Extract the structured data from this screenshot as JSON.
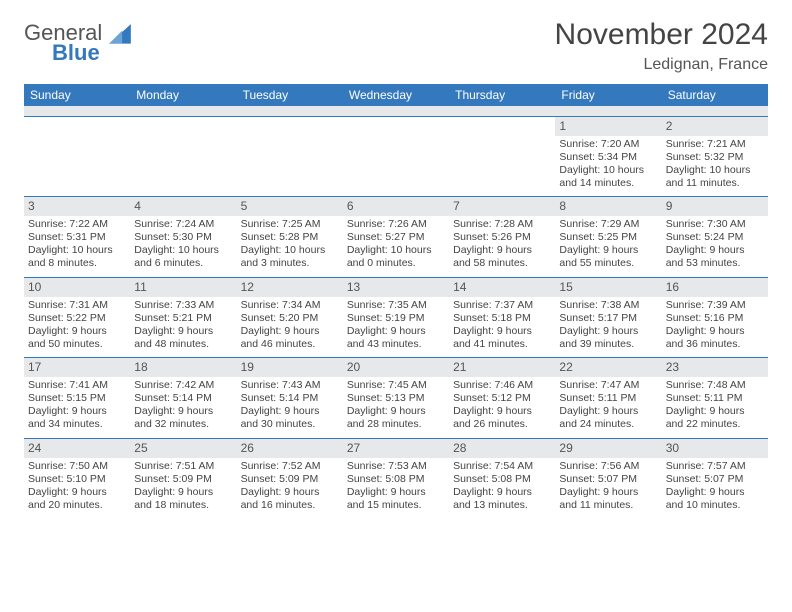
{
  "brand": {
    "general": "General",
    "blue": "Blue"
  },
  "title": {
    "month": "November 2024",
    "location": "Ledignan, France"
  },
  "colors": {
    "header_bg": "#3478bd",
    "header_text": "#ffffff",
    "daynum_bg": "#e7e8ea",
    "border": "#3478bd",
    "body_text": "#444444",
    "page_bg": "#ffffff"
  },
  "typography": {
    "title_fontsize": 30,
    "location_fontsize": 16,
    "weekday_fontsize": 12,
    "cell_fontsize": 10.5
  },
  "layout": {
    "columns": 7,
    "rows": 5,
    "week_start": "Sunday"
  },
  "weekdays": [
    "Sunday",
    "Monday",
    "Tuesday",
    "Wednesday",
    "Thursday",
    "Friday",
    "Saturday"
  ],
  "weeks": [
    [
      null,
      null,
      null,
      null,
      null,
      {
        "n": "1",
        "sunrise": "Sunrise: 7:20 AM",
        "sunset": "Sunset: 5:34 PM",
        "daylight1": "Daylight: 10 hours",
        "daylight2": "and 14 minutes."
      },
      {
        "n": "2",
        "sunrise": "Sunrise: 7:21 AM",
        "sunset": "Sunset: 5:32 PM",
        "daylight1": "Daylight: 10 hours",
        "daylight2": "and 11 minutes."
      }
    ],
    [
      {
        "n": "3",
        "sunrise": "Sunrise: 7:22 AM",
        "sunset": "Sunset: 5:31 PM",
        "daylight1": "Daylight: 10 hours",
        "daylight2": "and 8 minutes."
      },
      {
        "n": "4",
        "sunrise": "Sunrise: 7:24 AM",
        "sunset": "Sunset: 5:30 PM",
        "daylight1": "Daylight: 10 hours",
        "daylight2": "and 6 minutes."
      },
      {
        "n": "5",
        "sunrise": "Sunrise: 7:25 AM",
        "sunset": "Sunset: 5:28 PM",
        "daylight1": "Daylight: 10 hours",
        "daylight2": "and 3 minutes."
      },
      {
        "n": "6",
        "sunrise": "Sunrise: 7:26 AM",
        "sunset": "Sunset: 5:27 PM",
        "daylight1": "Daylight: 10 hours",
        "daylight2": "and 0 minutes."
      },
      {
        "n": "7",
        "sunrise": "Sunrise: 7:28 AM",
        "sunset": "Sunset: 5:26 PM",
        "daylight1": "Daylight: 9 hours",
        "daylight2": "and 58 minutes."
      },
      {
        "n": "8",
        "sunrise": "Sunrise: 7:29 AM",
        "sunset": "Sunset: 5:25 PM",
        "daylight1": "Daylight: 9 hours",
        "daylight2": "and 55 minutes."
      },
      {
        "n": "9",
        "sunrise": "Sunrise: 7:30 AM",
        "sunset": "Sunset: 5:24 PM",
        "daylight1": "Daylight: 9 hours",
        "daylight2": "and 53 minutes."
      }
    ],
    [
      {
        "n": "10",
        "sunrise": "Sunrise: 7:31 AM",
        "sunset": "Sunset: 5:22 PM",
        "daylight1": "Daylight: 9 hours",
        "daylight2": "and 50 minutes."
      },
      {
        "n": "11",
        "sunrise": "Sunrise: 7:33 AM",
        "sunset": "Sunset: 5:21 PM",
        "daylight1": "Daylight: 9 hours",
        "daylight2": "and 48 minutes."
      },
      {
        "n": "12",
        "sunrise": "Sunrise: 7:34 AM",
        "sunset": "Sunset: 5:20 PM",
        "daylight1": "Daylight: 9 hours",
        "daylight2": "and 46 minutes."
      },
      {
        "n": "13",
        "sunrise": "Sunrise: 7:35 AM",
        "sunset": "Sunset: 5:19 PM",
        "daylight1": "Daylight: 9 hours",
        "daylight2": "and 43 minutes."
      },
      {
        "n": "14",
        "sunrise": "Sunrise: 7:37 AM",
        "sunset": "Sunset: 5:18 PM",
        "daylight1": "Daylight: 9 hours",
        "daylight2": "and 41 minutes."
      },
      {
        "n": "15",
        "sunrise": "Sunrise: 7:38 AM",
        "sunset": "Sunset: 5:17 PM",
        "daylight1": "Daylight: 9 hours",
        "daylight2": "and 39 minutes."
      },
      {
        "n": "16",
        "sunrise": "Sunrise: 7:39 AM",
        "sunset": "Sunset: 5:16 PM",
        "daylight1": "Daylight: 9 hours",
        "daylight2": "and 36 minutes."
      }
    ],
    [
      {
        "n": "17",
        "sunrise": "Sunrise: 7:41 AM",
        "sunset": "Sunset: 5:15 PM",
        "daylight1": "Daylight: 9 hours",
        "daylight2": "and 34 minutes."
      },
      {
        "n": "18",
        "sunrise": "Sunrise: 7:42 AM",
        "sunset": "Sunset: 5:14 PM",
        "daylight1": "Daylight: 9 hours",
        "daylight2": "and 32 minutes."
      },
      {
        "n": "19",
        "sunrise": "Sunrise: 7:43 AM",
        "sunset": "Sunset: 5:14 PM",
        "daylight1": "Daylight: 9 hours",
        "daylight2": "and 30 minutes."
      },
      {
        "n": "20",
        "sunrise": "Sunrise: 7:45 AM",
        "sunset": "Sunset: 5:13 PM",
        "daylight1": "Daylight: 9 hours",
        "daylight2": "and 28 minutes."
      },
      {
        "n": "21",
        "sunrise": "Sunrise: 7:46 AM",
        "sunset": "Sunset: 5:12 PM",
        "daylight1": "Daylight: 9 hours",
        "daylight2": "and 26 minutes."
      },
      {
        "n": "22",
        "sunrise": "Sunrise: 7:47 AM",
        "sunset": "Sunset: 5:11 PM",
        "daylight1": "Daylight: 9 hours",
        "daylight2": "and 24 minutes."
      },
      {
        "n": "23",
        "sunrise": "Sunrise: 7:48 AM",
        "sunset": "Sunset: 5:11 PM",
        "daylight1": "Daylight: 9 hours",
        "daylight2": "and 22 minutes."
      }
    ],
    [
      {
        "n": "24",
        "sunrise": "Sunrise: 7:50 AM",
        "sunset": "Sunset: 5:10 PM",
        "daylight1": "Daylight: 9 hours",
        "daylight2": "and 20 minutes."
      },
      {
        "n": "25",
        "sunrise": "Sunrise: 7:51 AM",
        "sunset": "Sunset: 5:09 PM",
        "daylight1": "Daylight: 9 hours",
        "daylight2": "and 18 minutes."
      },
      {
        "n": "26",
        "sunrise": "Sunrise: 7:52 AM",
        "sunset": "Sunset: 5:09 PM",
        "daylight1": "Daylight: 9 hours",
        "daylight2": "and 16 minutes."
      },
      {
        "n": "27",
        "sunrise": "Sunrise: 7:53 AM",
        "sunset": "Sunset: 5:08 PM",
        "daylight1": "Daylight: 9 hours",
        "daylight2": "and 15 minutes."
      },
      {
        "n": "28",
        "sunrise": "Sunrise: 7:54 AM",
        "sunset": "Sunset: 5:08 PM",
        "daylight1": "Daylight: 9 hours",
        "daylight2": "and 13 minutes."
      },
      {
        "n": "29",
        "sunrise": "Sunrise: 7:56 AM",
        "sunset": "Sunset: 5:07 PM",
        "daylight1": "Daylight: 9 hours",
        "daylight2": "and 11 minutes."
      },
      {
        "n": "30",
        "sunrise": "Sunrise: 7:57 AM",
        "sunset": "Sunset: 5:07 PM",
        "daylight1": "Daylight: 9 hours",
        "daylight2": "and 10 minutes."
      }
    ]
  ]
}
